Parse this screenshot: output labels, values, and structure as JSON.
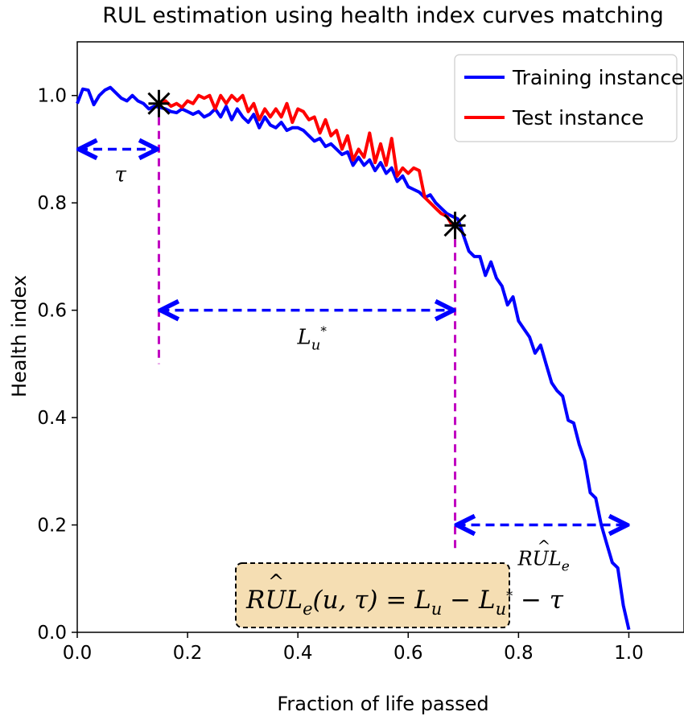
{
  "chart_data": {
    "type": "line",
    "title": "RUL estimation using health index curves matching",
    "xlabel": "Fraction of life passed",
    "ylabel": "Health index",
    "xlim": [
      0.0,
      1.1
    ],
    "ylim": [
      0.0,
      1.1
    ],
    "xticks": [
      "0.0",
      "0.2",
      "0.4",
      "0.6",
      "0.8",
      "1.0"
    ],
    "yticks": [
      "0.0",
      "0.2",
      "0.4",
      "0.6",
      "0.8",
      "1.0"
    ],
    "legend_position": "top-right",
    "grid": false,
    "series": [
      {
        "name": "Training instance",
        "color": "#0000ff",
        "x": [
          0.0,
          0.01,
          0.02,
          0.03,
          0.04,
          0.05,
          0.06,
          0.07,
          0.08,
          0.09,
          0.1,
          0.11,
          0.12,
          0.13,
          0.14,
          0.15,
          0.16,
          0.17,
          0.18,
          0.19,
          0.2,
          0.21,
          0.22,
          0.23,
          0.24,
          0.25,
          0.26,
          0.27,
          0.28,
          0.29,
          0.3,
          0.31,
          0.32,
          0.33,
          0.34,
          0.35,
          0.36,
          0.37,
          0.38,
          0.39,
          0.4,
          0.41,
          0.42,
          0.43,
          0.44,
          0.45,
          0.46,
          0.47,
          0.48,
          0.49,
          0.5,
          0.51,
          0.52,
          0.53,
          0.54,
          0.55,
          0.56,
          0.57,
          0.58,
          0.59,
          0.6,
          0.61,
          0.62,
          0.63,
          0.64,
          0.65,
          0.66,
          0.67,
          0.68,
          0.69,
          0.7,
          0.71,
          0.72,
          0.73,
          0.74,
          0.75,
          0.76,
          0.77,
          0.78,
          0.79,
          0.8,
          0.81,
          0.82,
          0.83,
          0.84,
          0.85,
          0.86,
          0.87,
          0.88,
          0.89,
          0.9,
          0.91,
          0.92,
          0.93,
          0.94,
          0.95,
          0.96,
          0.97,
          0.98,
          0.99,
          1.0
        ],
        "y": [
          0.985,
          1.012,
          1.01,
          0.983,
          1.0,
          1.01,
          1.015,
          1.005,
          0.995,
          0.99,
          1.0,
          0.99,
          0.985,
          0.975,
          0.98,
          0.978,
          0.975,
          0.97,
          0.968,
          0.975,
          0.97,
          0.965,
          0.97,
          0.96,
          0.965,
          0.975,
          0.96,
          0.98,
          0.955,
          0.975,
          0.96,
          0.95,
          0.965,
          0.94,
          0.96,
          0.945,
          0.94,
          0.95,
          0.935,
          0.94,
          0.94,
          0.935,
          0.925,
          0.915,
          0.92,
          0.905,
          0.91,
          0.9,
          0.89,
          0.895,
          0.87,
          0.885,
          0.87,
          0.88,
          0.86,
          0.875,
          0.855,
          0.865,
          0.84,
          0.85,
          0.83,
          0.825,
          0.82,
          0.81,
          0.815,
          0.8,
          0.79,
          0.78,
          0.775,
          0.77,
          0.74,
          0.71,
          0.7,
          0.7,
          0.665,
          0.69,
          0.66,
          0.645,
          0.61,
          0.625,
          0.58,
          0.565,
          0.55,
          0.52,
          0.535,
          0.5,
          0.465,
          0.45,
          0.44,
          0.395,
          0.39,
          0.35,
          0.32,
          0.26,
          0.25,
          0.2,
          0.165,
          0.13,
          0.12,
          0.05,
          0.005
        ]
      },
      {
        "name": "Test instance",
        "color": "#ff0000",
        "x": [
          0.15,
          0.16,
          0.17,
          0.18,
          0.19,
          0.2,
          0.21,
          0.22,
          0.23,
          0.24,
          0.25,
          0.26,
          0.27,
          0.28,
          0.29,
          0.3,
          0.31,
          0.32,
          0.33,
          0.34,
          0.35,
          0.36,
          0.37,
          0.38,
          0.39,
          0.4,
          0.41,
          0.42,
          0.43,
          0.44,
          0.45,
          0.46,
          0.47,
          0.48,
          0.49,
          0.5,
          0.51,
          0.52,
          0.53,
          0.54,
          0.55,
          0.56,
          0.57,
          0.58,
          0.59,
          0.6,
          0.61,
          0.62,
          0.63,
          0.64,
          0.65,
          0.66,
          0.67,
          0.68
        ],
        "y": [
          0.988,
          0.99,
          0.98,
          0.985,
          0.978,
          0.99,
          0.985,
          1.0,
          0.995,
          1.0,
          0.975,
          1.0,
          0.985,
          1.0,
          0.99,
          1.0,
          0.97,
          0.985,
          0.955,
          0.975,
          0.96,
          0.975,
          0.96,
          0.985,
          0.95,
          0.975,
          0.97,
          0.955,
          0.96,
          0.93,
          0.955,
          0.925,
          0.935,
          0.9,
          0.925,
          0.88,
          0.9,
          0.885,
          0.93,
          0.875,
          0.91,
          0.87,
          0.92,
          0.85,
          0.865,
          0.855,
          0.865,
          0.86,
          0.81,
          0.8,
          0.79,
          0.78,
          0.775,
          0.758
        ]
      }
    ],
    "markers": [
      {
        "x": 0.148,
        "y": 0.985
      },
      {
        "x": 0.685,
        "y": 0.758
      }
    ],
    "annotations": {
      "tau": "τ",
      "lu_main": "L",
      "lu_sub": "u",
      "lu_sup": "*",
      "rul_main": "RUL",
      "rul_hat": "^",
      "rul_sub": "e",
      "formula_lhs": "RUL",
      "formula_hat": "^",
      "formula_e": "e",
      "formula_args": "(u, τ) = L",
      "formula_u": "u",
      "formula_minus": " − L",
      "formula_u2": "u",
      "formula_star": "*",
      "formula_tail": " − τ"
    }
  }
}
